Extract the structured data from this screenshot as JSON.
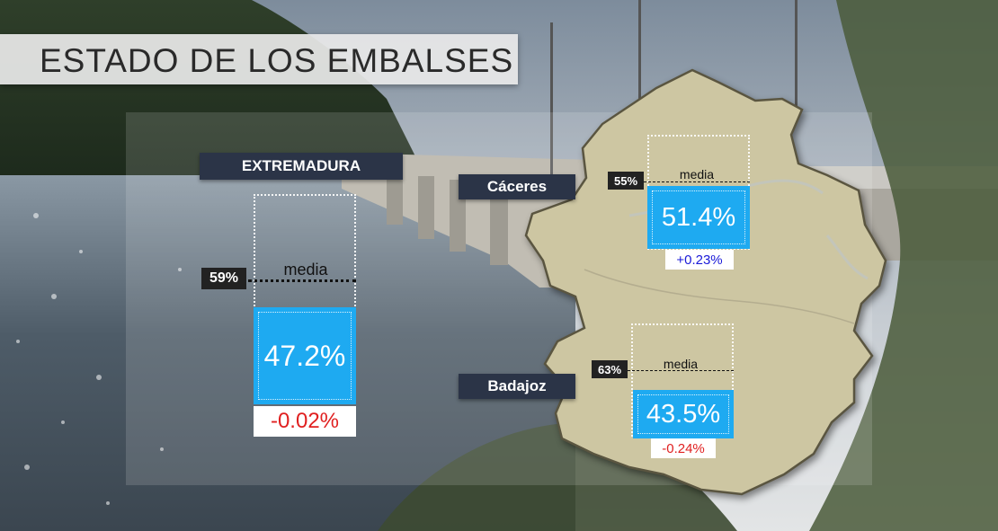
{
  "title": "ESTADO DE LOS EMBALSES",
  "extremadura": {
    "label": "EXTREMADURA",
    "media_label": "media",
    "media_pct": "59%",
    "value": "47.2%",
    "change": "-0.02%",
    "change_color": "#e02020"
  },
  "caceres": {
    "label": "Cáceres",
    "media_label": "media",
    "media_pct": "55%",
    "value": "51.4%",
    "change": "+0.23%",
    "change_color": "#1a1ad8"
  },
  "badajoz": {
    "label": "Badajoz",
    "media_label": "media",
    "media_pct": "63%",
    "value": "43.5%",
    "change": "-0.24%",
    "change_color": "#e02020"
  },
  "colors": {
    "value_box": "#1eaaf1",
    "tag_bg": "#2b3447",
    "map_fill": "#cdc6a2"
  }
}
